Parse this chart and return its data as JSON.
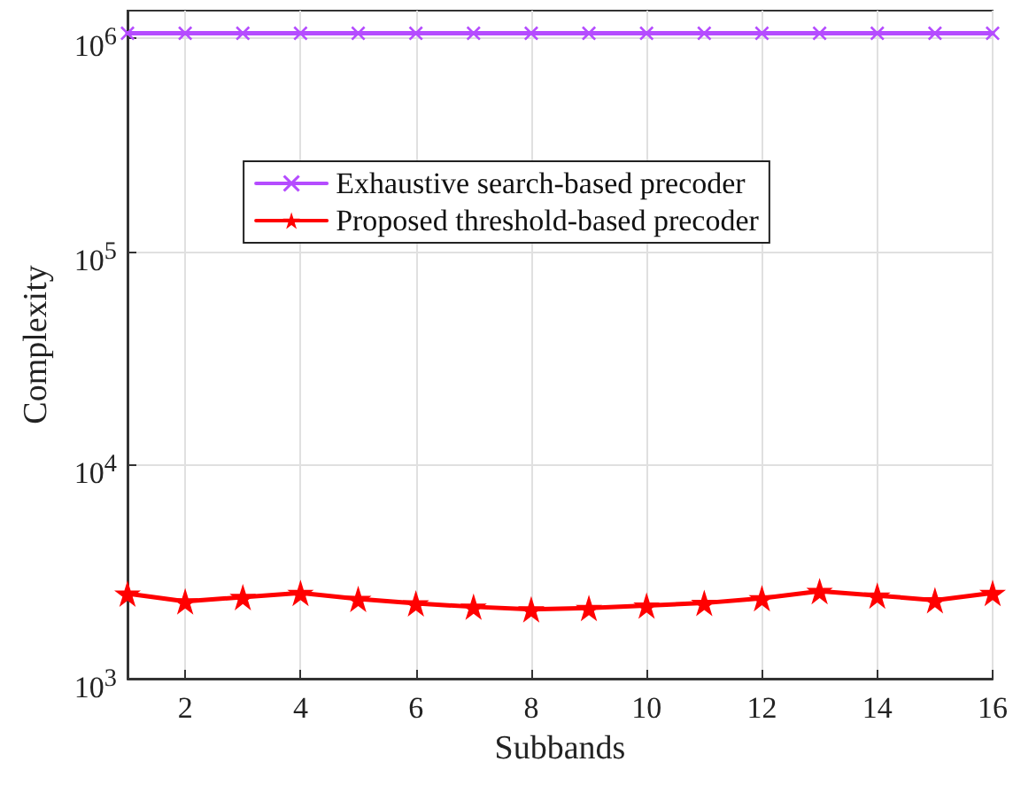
{
  "chart_data": {
    "type": "line",
    "xlabel": "Subbands",
    "ylabel": "Complexity",
    "x": [
      1,
      2,
      3,
      4,
      5,
      6,
      7,
      8,
      9,
      10,
      11,
      12,
      13,
      14,
      15,
      16
    ],
    "series": [
      {
        "name": "Exhaustive search-based precoder",
        "color": "#b54cff",
        "marker": "cross",
        "values": [
          1050000,
          1050000,
          1050000,
          1050000,
          1050000,
          1050000,
          1050000,
          1050000,
          1050000,
          1050000,
          1050000,
          1050000,
          1050000,
          1050000,
          1050000,
          1050000
        ]
      },
      {
        "name": "Proposed threshold-based precoder",
        "color": "#ff0000",
        "marker": "star",
        "values": [
          2500,
          2300,
          2410,
          2520,
          2360,
          2250,
          2170,
          2110,
          2140,
          2200,
          2260,
          2380,
          2570,
          2450,
          2330,
          2520
        ]
      }
    ],
    "log": "y",
    "xlim": [
      1,
      16
    ],
    "ylim": [
      1000,
      1340000
    ],
    "xticks": [
      2,
      4,
      6,
      8,
      10,
      12,
      14,
      16
    ],
    "yticks": [
      {
        "value": 1000,
        "label": "10$^{3}$"
      },
      {
        "value": 10000,
        "label": "10$^{4}$"
      },
      {
        "value": 100000,
        "label": "10$^{5}$"
      },
      {
        "value": 1000000,
        "label": "10$^{6}$"
      }
    ],
    "grid": true,
    "legend": "top",
    "line_style": "solid"
  }
}
